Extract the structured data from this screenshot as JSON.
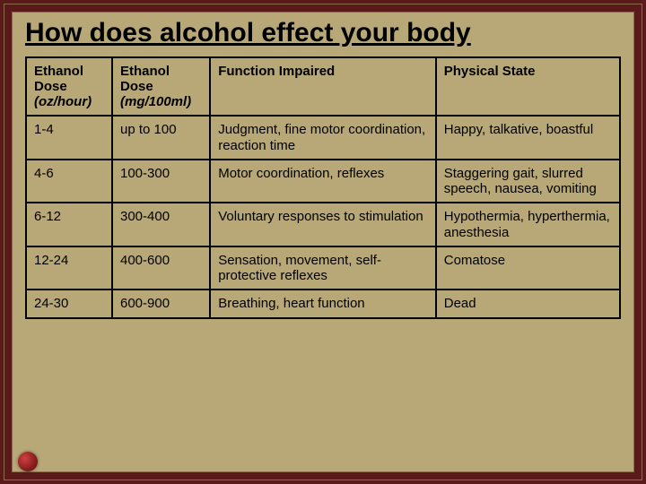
{
  "slide": {
    "title": "How does alcohol effect your body",
    "background_color": "#b8a878",
    "frame_color": "#8a6a4a",
    "outer_background": "#5a1a1a",
    "bullet_color": "#b03030",
    "title_fontsize": 30,
    "cell_fontsize": 15
  },
  "table": {
    "border_color": "#000000",
    "col_widths_pct": [
      14.5,
      16.5,
      38,
      31
    ],
    "headers": {
      "col0_main": "Ethanol Dose",
      "col0_sub": "(oz/hour)",
      "col1_main": "Ethanol Dose",
      "col1_sub": "(mg/100ml)",
      "col2": "Function Impaired",
      "col3": "Physical State"
    },
    "rows": [
      {
        "dose_oz": "1-4",
        "dose_mg": "up to 100",
        "fn": "Judgment, fine motor coordination, reaction time",
        "state": "Happy, talkative, boastful"
      },
      {
        "dose_oz": "4-6",
        "dose_mg": "100-300",
        "fn": "Motor coordination, reflexes",
        "state": "Staggering gait, slurred speech, nausea, vomiting"
      },
      {
        "dose_oz": "6-12",
        "dose_mg": "300-400",
        "fn": "Voluntary responses to stimulation",
        "state": "Hypothermia, hyperthermia, anesthesia"
      },
      {
        "dose_oz": "12-24",
        "dose_mg": "400-600",
        "fn": "Sensation, movement, self-protective reflexes",
        "state": "Comatose"
      },
      {
        "dose_oz": "24-30",
        "dose_mg": "600-900",
        "fn": "Breathing, heart function",
        "state": "Dead"
      }
    ]
  }
}
